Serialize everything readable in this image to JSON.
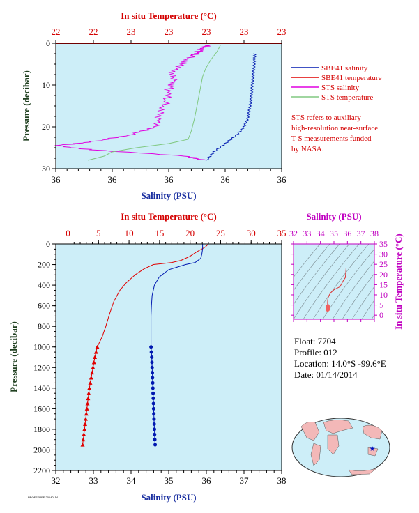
{
  "colors": {
    "plot_bg": "#cdeef8",
    "temperature": "#e00000",
    "salinity": "#0018b0",
    "sts_salinity": "#e000e0",
    "sts_temperature": "#80c880",
    "axis_dark": "#204020",
    "magenta_text": "#c000c0"
  },
  "top_panel": {
    "top_axis_label": "In situ Temperature (°C)",
    "top_tick_labels": [
      "22",
      "22",
      "23",
      "23",
      "23",
      "23",
      "23"
    ],
    "bottom_axis_label": "Salinity (PSU)",
    "bottom_tick_labels": [
      "36",
      "36",
      "36",
      "36",
      "36"
    ],
    "y_axis_label": "Pressure (decibar)",
    "y_tick_labels": [
      "0",
      "10",
      "20",
      "30"
    ],
    "legend": [
      {
        "label": "SBE41 salinity",
        "color_key": "salinity"
      },
      {
        "label": "SBE41 temperature",
        "color_key": "temperature"
      },
      {
        "label": "STS salinity",
        "color_key": "sts_salinity"
      },
      {
        "label": "STS temperature",
        "color_key": "sts_temperature"
      }
    ],
    "note_lines": [
      "STS refers to auxiliary",
      "high-resolution near-surface",
      "T-S measurements funded",
      "by NASA."
    ]
  },
  "bottom_panel": {
    "top_axis_label": "In situ Temperature (°C)",
    "top_tick_labels": [
      "0",
      "5",
      "10",
      "15",
      "20",
      "25",
      "30",
      "35"
    ],
    "bottom_axis_label": "Salinity (PSU)",
    "bottom_tick_labels": [
      "32",
      "33",
      "34",
      "35",
      "36",
      "37",
      "38"
    ],
    "y_axis_label": "Pressure (decibar)",
    "y_tick_labels": [
      "0",
      "200",
      "400",
      "600",
      "800",
      "1000",
      "1200",
      "1400",
      "1600",
      "1800",
      "2000",
      "2200"
    ]
  },
  "ts_panel": {
    "top_axis_label": "Salinity (PSU)",
    "top_tick_labels": [
      "32",
      "33",
      "34",
      "35",
      "36",
      "37",
      "38"
    ],
    "right_axis_label": "In situ Temperature (°C)",
    "right_tick_labels": [
      "0",
      "5",
      "10",
      "15",
      "20",
      "25",
      "30",
      "35"
    ]
  },
  "info": {
    "float": "Float:  7704",
    "profile": "Profile:  012",
    "location": "Location:  14.0°S  -99.6°E",
    "date": "Date:  01/14/2014"
  },
  "footer_tag": "PROFSFREE 20140114",
  "chart_data": [
    {
      "type": "line",
      "title": "",
      "xlabel": "Salinity (PSU)",
      "x2label": "In situ Temperature (°C)",
      "ylabel": "Pressure (decibar)",
      "x_range_salinity": [
        35.95,
        36.25
      ],
      "x_range_temperature": [
        22.0,
        23.4
      ],
      "ylim": [
        30,
        0
      ],
      "series": [
        {
          "name": "SBE41 salinity",
          "axis": "salinity",
          "points": [
            [
              36.214,
              2.5
            ],
            [
              36.214,
              4
            ],
            [
              36.213,
              6
            ],
            [
              36.212,
              8
            ],
            [
              36.211,
              10
            ],
            [
              36.21,
              12
            ],
            [
              36.209,
              14
            ],
            [
              36.207,
              16
            ],
            [
              36.205,
              18
            ],
            [
              36.2,
              20
            ],
            [
              36.19,
              22
            ],
            [
              36.175,
              24
            ],
            [
              36.16,
              26
            ],
            [
              36.15,
              28
            ]
          ]
        },
        {
          "name": "SBE41 temperature",
          "axis": "temperature",
          "points": [
            [
              22.0,
              0
            ],
            [
              23.4,
              0
            ]
          ]
        },
        {
          "name": "STS salinity",
          "axis": "sts",
          "points": [
            [
              36.15,
              0.5
            ],
            [
              36.148,
              1
            ],
            [
              36.14,
              2
            ],
            [
              36.13,
              3
            ],
            [
              36.12,
              5
            ],
            [
              36.1,
              7
            ],
            [
              36.11,
              9
            ],
            [
              36.1,
              11
            ],
            [
              36.095,
              14
            ],
            [
              36.09,
              17
            ],
            [
              36.08,
              20
            ],
            [
              36.05,
              22
            ],
            [
              36.0,
              23.5
            ],
            [
              35.95,
              24.5
            ],
            [
              36.0,
              25.5
            ],
            [
              36.12,
              27
            ],
            [
              36.15,
              28
            ]
          ]
        },
        {
          "name": "STS temperature",
          "axis": "temperature",
          "points": [
            [
              23.02,
              0.5
            ],
            [
              23.0,
              2
            ],
            [
              22.98,
              3
            ],
            [
              22.96,
              4
            ],
            [
              22.93,
              6
            ],
            [
              22.91,
              8
            ],
            [
              22.9,
              10
            ],
            [
              22.88,
              14
            ],
            [
              22.86,
              18
            ],
            [
              22.84,
              21
            ],
            [
              22.82,
              23
            ],
            [
              22.7,
              24
            ],
            [
              22.5,
              25
            ],
            [
              22.35,
              26
            ],
            [
              22.3,
              27
            ],
            [
              22.2,
              28
            ]
          ]
        }
      ]
    },
    {
      "type": "line",
      "title": "",
      "xlabel": "Salinity (PSU)",
      "x2label": "In situ Temperature (°C)",
      "ylabel": "Pressure (decibar)",
      "xlim_salinity": [
        32,
        38
      ],
      "xlim_temperature": [
        -2,
        35
      ],
      "ylim": [
        2200,
        0
      ],
      "series": [
        {
          "name": "SBE41 temperature",
          "axis": "temperature",
          "points": [
            [
              23.0,
              0
            ],
            [
              22.5,
              30
            ],
            [
              21.0,
              80
            ],
            [
              20.0,
              120
            ],
            [
              18.5,
              160
            ],
            [
              17.0,
              180
            ],
            [
              15.5,
              190
            ],
            [
              14.0,
              200
            ],
            [
              12.5,
              240
            ],
            [
              11.0,
              300
            ],
            [
              9.5,
              380
            ],
            [
              8.5,
              450
            ],
            [
              7.5,
              560
            ],
            [
              6.8,
              680
            ],
            [
              6.2,
              800
            ],
            [
              5.6,
              900
            ],
            [
              4.8,
              1000
            ],
            [
              4.4,
              1100
            ],
            [
              4.1,
              1200
            ],
            [
              3.8,
              1300
            ],
            [
              3.5,
              1400
            ],
            [
              3.3,
              1500
            ],
            [
              3.1,
              1600
            ],
            [
              2.9,
              1700
            ],
            [
              2.7,
              1800
            ],
            [
              2.5,
              1900
            ],
            [
              2.4,
              1950
            ]
          ]
        },
        {
          "name": "SBE41 salinity",
          "axis": "salinity",
          "points": [
            [
              35.9,
              0
            ],
            [
              35.9,
              50
            ],
            [
              35.88,
              100
            ],
            [
              35.85,
              140
            ],
            [
              35.7,
              180
            ],
            [
              35.45,
              200
            ],
            [
              35.0,
              250
            ],
            [
              34.75,
              320
            ],
            [
              34.62,
              400
            ],
            [
              34.56,
              500
            ],
            [
              34.54,
              600
            ],
            [
              34.53,
              700
            ],
            [
              34.53,
              800
            ],
            [
              34.53,
              900
            ],
            [
              34.53,
              1000
            ],
            [
              34.55,
              1100
            ],
            [
              34.56,
              1200
            ],
            [
              34.57,
              1300
            ],
            [
              34.58,
              1400
            ],
            [
              34.59,
              1500
            ],
            [
              34.6,
              1600
            ],
            [
              34.61,
              1700
            ],
            [
              34.62,
              1800
            ],
            [
              34.63,
              1900
            ],
            [
              34.64,
              1950
            ]
          ]
        },
        {
          "name": "temperature markers",
          "axis": "temperature",
          "marker": "triangle",
          "points": [
            [
              4.8,
              1000
            ],
            [
              4.6,
              1050
            ],
            [
              4.4,
              1100
            ],
            [
              4.25,
              1150
            ],
            [
              4.1,
              1200
            ],
            [
              3.95,
              1250
            ],
            [
              3.8,
              1300
            ],
            [
              3.65,
              1350
            ],
            [
              3.5,
              1400
            ],
            [
              3.4,
              1450
            ],
            [
              3.3,
              1500
            ],
            [
              3.2,
              1550
            ],
            [
              3.1,
              1600
            ],
            [
              3.0,
              1650
            ],
            [
              2.9,
              1700
            ],
            [
              2.8,
              1750
            ],
            [
              2.7,
              1800
            ],
            [
              2.6,
              1850
            ],
            [
              2.5,
              1900
            ],
            [
              2.4,
              1950
            ]
          ]
        },
        {
          "name": "salinity markers",
          "axis": "salinity",
          "marker": "circle",
          "points": [
            [
              34.53,
              1000
            ],
            [
              34.54,
              1050
            ],
            [
              34.55,
              1100
            ],
            [
              34.555,
              1150
            ],
            [
              34.56,
              1200
            ],
            [
              34.565,
              1250
            ],
            [
              34.57,
              1300
            ],
            [
              34.575,
              1350
            ],
            [
              34.58,
              1400
            ],
            [
              34.585,
              1450
            ],
            [
              34.59,
              1500
            ],
            [
              34.595,
              1550
            ],
            [
              34.6,
              1600
            ],
            [
              34.605,
              1650
            ],
            [
              34.61,
              1700
            ],
            [
              34.615,
              1750
            ],
            [
              34.62,
              1800
            ],
            [
              34.625,
              1850
            ],
            [
              34.63,
              1900
            ],
            [
              34.64,
              1950
            ]
          ]
        }
      ]
    },
    {
      "type": "line",
      "title": "",
      "xlabel": "Salinity (PSU)",
      "ylabel": "In situ Temperature (°C)",
      "xlim": [
        32,
        38
      ],
      "ylim": [
        -2,
        35
      ],
      "series": [
        {
          "name": "T-S",
          "points": [
            [
              35.9,
              23.0
            ],
            [
              35.88,
              21.0
            ],
            [
              35.85,
              18.5
            ],
            [
              35.7,
              17.0
            ],
            [
              35.45,
              14.0
            ],
            [
              35.0,
              12.5
            ],
            [
              34.75,
              11.0
            ],
            [
              34.62,
              9.5
            ],
            [
              34.56,
              8.5
            ],
            [
              34.54,
              7.5
            ],
            [
              34.53,
              6.2
            ],
            [
              34.53,
              4.8
            ],
            [
              34.56,
              4.1
            ],
            [
              34.6,
              3.1
            ],
            [
              34.64,
              2.4
            ]
          ]
        }
      ]
    }
  ]
}
